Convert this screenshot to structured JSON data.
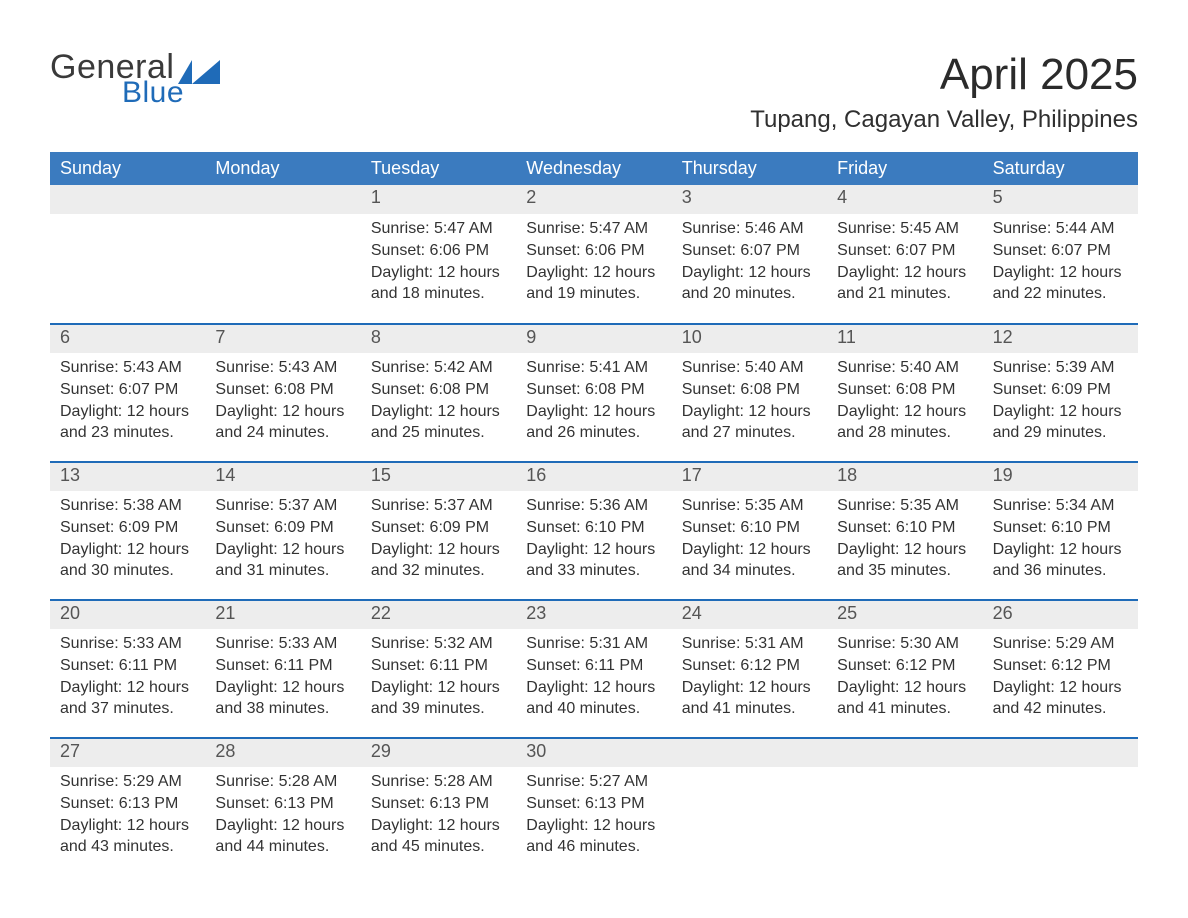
{
  "brand": {
    "word1": "General",
    "word2": "Blue",
    "flag_color": "#1f6bb8"
  },
  "title": "April 2025",
  "location": "Tupang, Cagayan Valley, Philippines",
  "colors": {
    "header_blue": "#3b7bbf",
    "accent_blue": "#1f6bb8",
    "row_border": "#1f6bb8",
    "day_strip_bg": "#ededed",
    "background": "#ffffff",
    "text": "#333333"
  },
  "weekdays": [
    "Sunday",
    "Monday",
    "Tuesday",
    "Wednesday",
    "Thursday",
    "Friday",
    "Saturday"
  ],
  "weeks": [
    [
      null,
      null,
      {
        "n": "1",
        "sunrise": "5:47 AM",
        "sunset": "6:06 PM",
        "daylight": "12 hours and 18 minutes."
      },
      {
        "n": "2",
        "sunrise": "5:47 AM",
        "sunset": "6:06 PM",
        "daylight": "12 hours and 19 minutes."
      },
      {
        "n": "3",
        "sunrise": "5:46 AM",
        "sunset": "6:07 PM",
        "daylight": "12 hours and 20 minutes."
      },
      {
        "n": "4",
        "sunrise": "5:45 AM",
        "sunset": "6:07 PM",
        "daylight": "12 hours and 21 minutes."
      },
      {
        "n": "5",
        "sunrise": "5:44 AM",
        "sunset": "6:07 PM",
        "daylight": "12 hours and 22 minutes."
      }
    ],
    [
      {
        "n": "6",
        "sunrise": "5:43 AM",
        "sunset": "6:07 PM",
        "daylight": "12 hours and 23 minutes."
      },
      {
        "n": "7",
        "sunrise": "5:43 AM",
        "sunset": "6:08 PM",
        "daylight": "12 hours and 24 minutes."
      },
      {
        "n": "8",
        "sunrise": "5:42 AM",
        "sunset": "6:08 PM",
        "daylight": "12 hours and 25 minutes."
      },
      {
        "n": "9",
        "sunrise": "5:41 AM",
        "sunset": "6:08 PM",
        "daylight": "12 hours and 26 minutes."
      },
      {
        "n": "10",
        "sunrise": "5:40 AM",
        "sunset": "6:08 PM",
        "daylight": "12 hours and 27 minutes."
      },
      {
        "n": "11",
        "sunrise": "5:40 AM",
        "sunset": "6:08 PM",
        "daylight": "12 hours and 28 minutes."
      },
      {
        "n": "12",
        "sunrise": "5:39 AM",
        "sunset": "6:09 PM",
        "daylight": "12 hours and 29 minutes."
      }
    ],
    [
      {
        "n": "13",
        "sunrise": "5:38 AM",
        "sunset": "6:09 PM",
        "daylight": "12 hours and 30 minutes."
      },
      {
        "n": "14",
        "sunrise": "5:37 AM",
        "sunset": "6:09 PM",
        "daylight": "12 hours and 31 minutes."
      },
      {
        "n": "15",
        "sunrise": "5:37 AM",
        "sunset": "6:09 PM",
        "daylight": "12 hours and 32 minutes."
      },
      {
        "n": "16",
        "sunrise": "5:36 AM",
        "sunset": "6:10 PM",
        "daylight": "12 hours and 33 minutes."
      },
      {
        "n": "17",
        "sunrise": "5:35 AM",
        "sunset": "6:10 PM",
        "daylight": "12 hours and 34 minutes."
      },
      {
        "n": "18",
        "sunrise": "5:35 AM",
        "sunset": "6:10 PM",
        "daylight": "12 hours and 35 minutes."
      },
      {
        "n": "19",
        "sunrise": "5:34 AM",
        "sunset": "6:10 PM",
        "daylight": "12 hours and 36 minutes."
      }
    ],
    [
      {
        "n": "20",
        "sunrise": "5:33 AM",
        "sunset": "6:11 PM",
        "daylight": "12 hours and 37 minutes."
      },
      {
        "n": "21",
        "sunrise": "5:33 AM",
        "sunset": "6:11 PM",
        "daylight": "12 hours and 38 minutes."
      },
      {
        "n": "22",
        "sunrise": "5:32 AM",
        "sunset": "6:11 PM",
        "daylight": "12 hours and 39 minutes."
      },
      {
        "n": "23",
        "sunrise": "5:31 AM",
        "sunset": "6:11 PM",
        "daylight": "12 hours and 40 minutes."
      },
      {
        "n": "24",
        "sunrise": "5:31 AM",
        "sunset": "6:12 PM",
        "daylight": "12 hours and 41 minutes."
      },
      {
        "n": "25",
        "sunrise": "5:30 AM",
        "sunset": "6:12 PM",
        "daylight": "12 hours and 41 minutes."
      },
      {
        "n": "26",
        "sunrise": "5:29 AM",
        "sunset": "6:12 PM",
        "daylight": "12 hours and 42 minutes."
      }
    ],
    [
      {
        "n": "27",
        "sunrise": "5:29 AM",
        "sunset": "6:13 PM",
        "daylight": "12 hours and 43 minutes."
      },
      {
        "n": "28",
        "sunrise": "5:28 AM",
        "sunset": "6:13 PM",
        "daylight": "12 hours and 44 minutes."
      },
      {
        "n": "29",
        "sunrise": "5:28 AM",
        "sunset": "6:13 PM",
        "daylight": "12 hours and 45 minutes."
      },
      {
        "n": "30",
        "sunrise": "5:27 AM",
        "sunset": "6:13 PM",
        "daylight": "12 hours and 46 minutes."
      },
      null,
      null,
      null
    ]
  ],
  "labels": {
    "sunrise": "Sunrise:",
    "sunset": "Sunset:",
    "daylight": "Daylight:"
  }
}
